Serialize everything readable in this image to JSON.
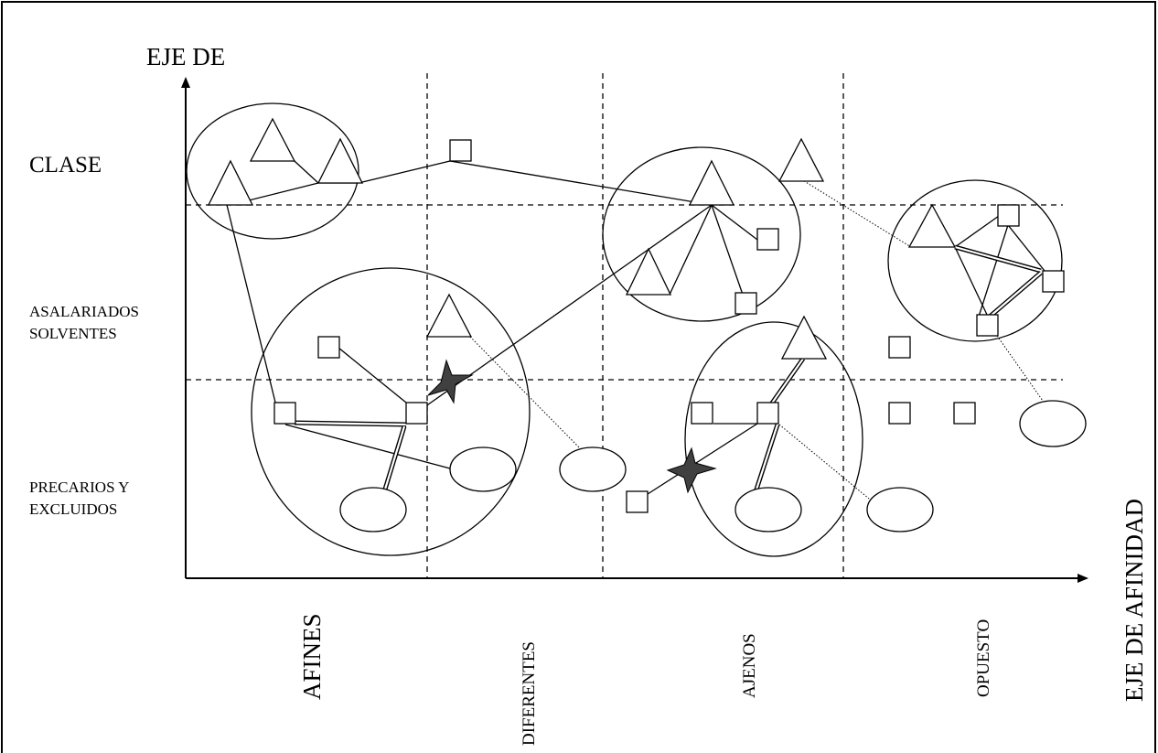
{
  "labels": {
    "y_axis_title": "EJE DE",
    "x_axis_title": "EJE DE AFINIDAD",
    "rows": {
      "clase": "CLASE",
      "asalariados_1": "ASALARIADOS",
      "asalariados_2": "SOLVENTES",
      "precarios_1": "PRECARIOS Y",
      "precarios_2": "EXCLUIDOS"
    },
    "columns": {
      "afines": "AFINES",
      "diferentes": "DIFERENTES",
      "ajenos": "AJENOS",
      "opuesto": "OPUESTO"
    }
  },
  "legend_shapes": [
    "triangle",
    "square",
    "ellipse",
    "star"
  ],
  "colors": {
    "stroke": "#000000",
    "background": "#ffffff",
    "star_fill": "#404040"
  }
}
